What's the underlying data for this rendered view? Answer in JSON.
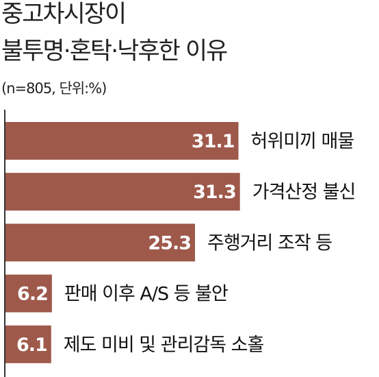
{
  "chart_data": {
    "type": "bar",
    "orientation": "horizontal",
    "title": "중고차시장이",
    "title_line2": "불투명·혼탁·낙후한 이유",
    "subtitle": "(n=805, 단위:%)",
    "categories": [
      "허위미끼 매물",
      "가격산정 불신",
      "주행거리 조작 등",
      "판매 이후 A/S 등 불안",
      "제도 미비 및 관리감독 소홀"
    ],
    "values": [
      31.1,
      31.3,
      25.3,
      6.2,
      6.1
    ],
    "color": "#9e594b"
  }
}
